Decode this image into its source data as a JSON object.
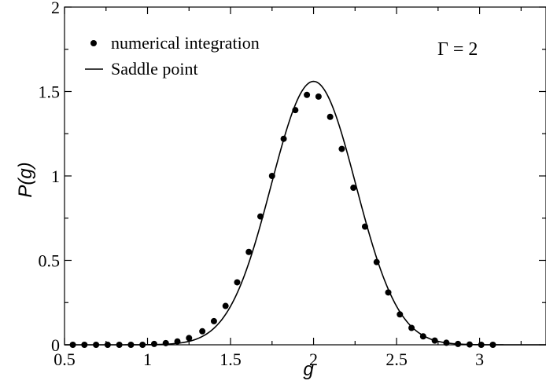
{
  "chart_data": {
    "type": "scatter",
    "xlabel": "g",
    "ylabel": "P(g)",
    "xlim": [
      0.5,
      3.4
    ],
    "ylim": [
      0,
      2
    ],
    "x_ticks": [
      "0.5",
      "1",
      "1.5",
      "2",
      "2.5",
      "3"
    ],
    "x_tick_values": [
      0.5,
      1,
      1.5,
      2,
      2.5,
      3
    ],
    "y_ticks": [
      "0",
      "0.5",
      "1",
      "1.5",
      "2"
    ],
    "y_tick_values": [
      0,
      0.5,
      1,
      1.5,
      2
    ],
    "annotation": "Γ = 2",
    "legend_position": "top-left",
    "grid": false,
    "series": [
      {
        "name": "numerical integration",
        "style": "markers",
        "color": "#000000",
        "x": [
          0.55,
          0.62,
          0.69,
          0.76,
          0.83,
          0.9,
          0.97,
          1.04,
          1.11,
          1.18,
          1.25,
          1.33,
          1.4,
          1.47,
          1.54,
          1.61,
          1.68,
          1.75,
          1.82,
          1.89,
          1.96,
          2.03,
          2.1,
          2.17,
          2.24,
          2.31,
          2.38,
          2.45,
          2.52,
          2.59,
          2.66,
          2.73,
          2.8,
          2.87,
          2.94,
          3.01,
          3.08
        ],
        "y": [
          0,
          0,
          0,
          0,
          0,
          0,
          0,
          0.005,
          0.01,
          0.02,
          0.04,
          0.08,
          0.14,
          0.23,
          0.37,
          0.55,
          0.76,
          1.0,
          1.22,
          1.39,
          1.48,
          1.47,
          1.35,
          1.16,
          0.93,
          0.7,
          0.49,
          0.31,
          0.18,
          0.1,
          0.05,
          0.025,
          0.012,
          0.005,
          0.002,
          0,
          0
        ]
      },
      {
        "name": "Saddle point",
        "style": "line",
        "color": "#000000",
        "mean": 2.0,
        "sd": 0.255,
        "peak": 1.56,
        "x_range": [
          0.5,
          3.4
        ]
      }
    ]
  }
}
